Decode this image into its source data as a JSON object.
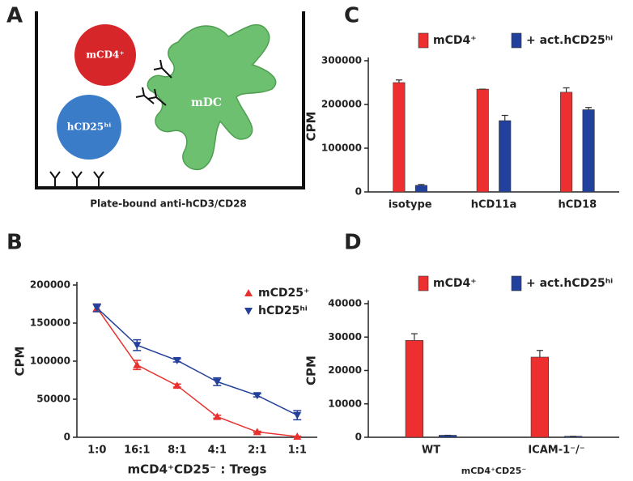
{
  "diagram": {
    "panel": "A",
    "cell_red": "mCD4⁺",
    "cell_blue": "hCD25ʰⁱ",
    "dc": "mDC",
    "caption": "Plate-bound anti-hCD3/CD28"
  },
  "chart_data": [
    {
      "type": "line",
      "panel": "B",
      "ylabel": "CPM",
      "xlabel": "mCD4⁺CD25⁻ : Tregs",
      "categories": [
        "1:0",
        "16:1",
        "8:1",
        "4:1",
        "2:1",
        "1:1"
      ],
      "series": [
        {
          "name": "mCD25⁺",
          "color": "#e8312f",
          "marker": "triangle-up",
          "values": [
            170000,
            95000,
            68000,
            27000,
            7000,
            1000
          ],
          "errors": [
            5000,
            6000,
            2000,
            2000,
            1000,
            500
          ]
        },
        {
          "name": "hCD25ʰⁱ",
          "color": "#23409a",
          "marker": "triangle-down",
          "values": [
            170000,
            121000,
            101000,
            73000,
            55000,
            29000
          ],
          "errors": [
            5000,
            7000,
            2000,
            5000,
            2000,
            6000
          ]
        }
      ],
      "ylim": [
        0,
        200000
      ],
      "yticks": [
        0,
        50000,
        100000,
        150000,
        200000
      ],
      "legend": "upper right"
    },
    {
      "type": "bar",
      "panel": "C",
      "ylabel": "CPM",
      "categories": [
        "isotype",
        "hCD11a",
        "hCD18"
      ],
      "series": [
        {
          "name": "mCD4⁺",
          "color": "#ee2f2f",
          "values": [
            250000,
            235000,
            228000
          ],
          "errors": [
            6000,
            0,
            10000
          ]
        },
        {
          "name": "+ act.hCD25ʰⁱ",
          "color": "#22419d",
          "values": [
            15000,
            163000,
            188000
          ],
          "errors": [
            2000,
            12000,
            5000
          ]
        }
      ],
      "ylim": [
        0,
        300000
      ],
      "yticks": [
        0,
        100000,
        200000,
        300000
      ],
      "legend": "top"
    },
    {
      "type": "bar",
      "panel": "D",
      "ylabel": "CPM",
      "xlabel": "mCD4⁺CD25⁻",
      "categories": [
        "WT",
        "ICAM-1⁻/⁻"
      ],
      "series": [
        {
          "name": "mCD4⁺",
          "color": "#ee2f2f",
          "values": [
            29000,
            24000
          ],
          "errors": [
            2000,
            2000
          ]
        },
        {
          "name": "+ act.hCD25ʰⁱ",
          "color": "#22419d",
          "values": [
            600,
            300
          ],
          "errors": [
            0,
            0
          ]
        }
      ],
      "ylim": [
        0,
        40000
      ],
      "yticks": [
        0,
        10000,
        20000,
        30000,
        40000
      ],
      "legend": "top"
    }
  ]
}
